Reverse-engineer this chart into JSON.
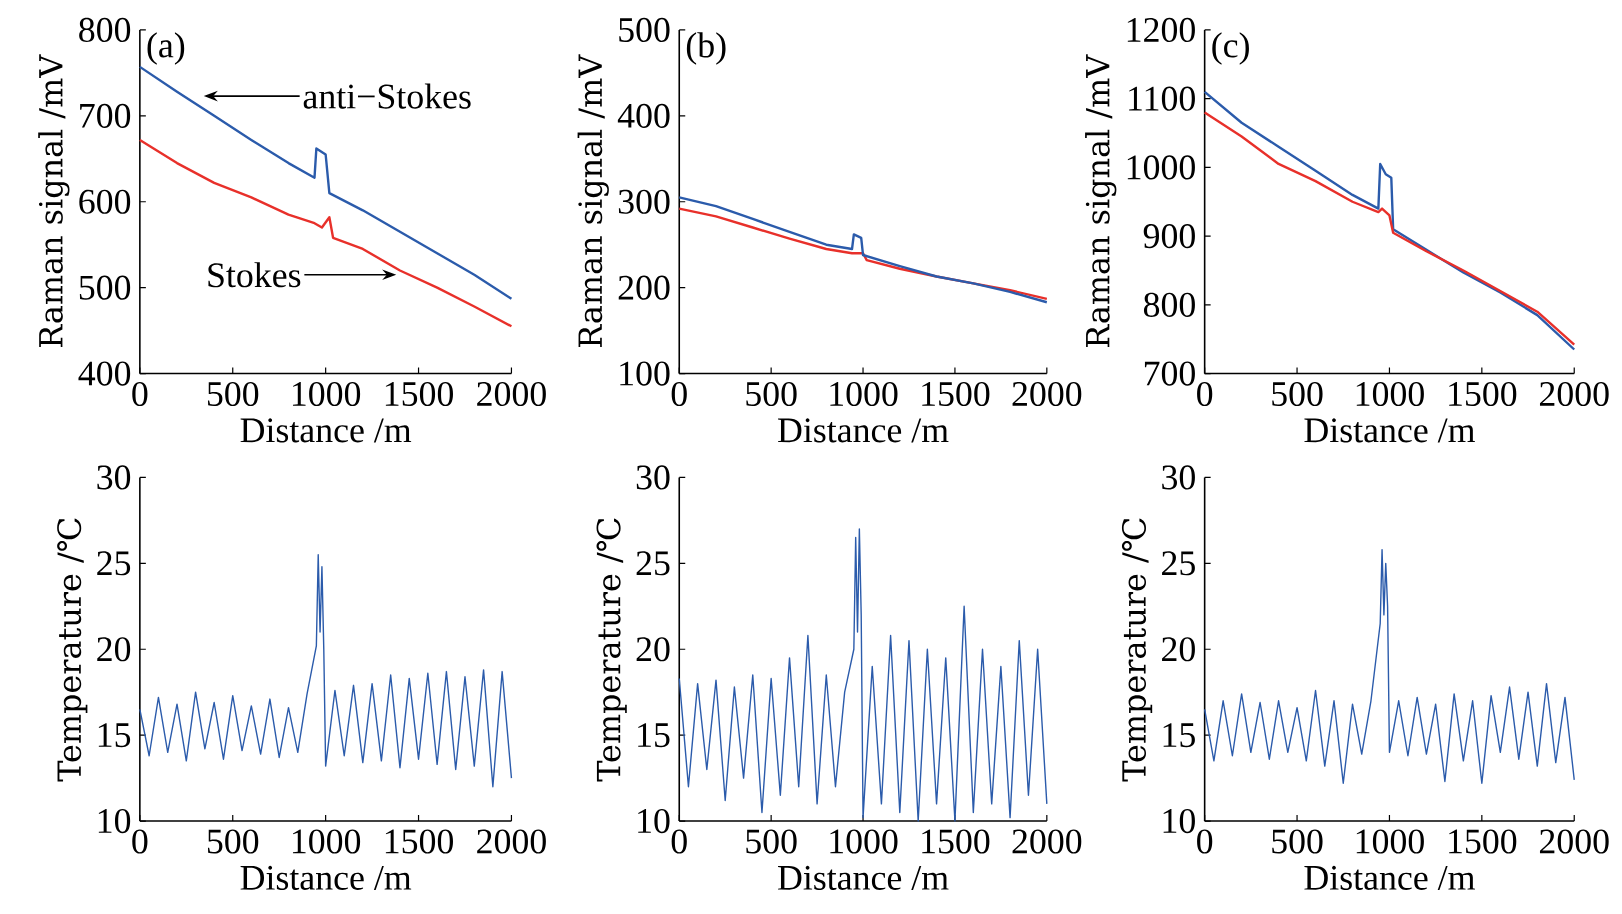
{
  "chart_data": [
    {
      "type": "line",
      "xlabel": "Distance /m",
      "ylabel": "Raman signal /mV",
      "xlim": [
        0,
        2000
      ],
      "ylim": [
        400,
        800
      ],
      "xticks": [
        0,
        500,
        1000,
        1500,
        2000
      ],
      "yticks": [
        400,
        500,
        600,
        700,
        800
      ],
      "annotations": [
        "(a)",
        {
          "text": "anti−Stokes",
          "x": 344,
          "y": 723
        },
        {
          "text": "Stokes",
          "x": 1380,
          "y": 515
        }
      ],
      "series": [
        {
          "color": "#2b5bab",
          "x": [
            0,
            200,
            400,
            600,
            800,
            940,
            950,
            1000,
            1020,
            1200,
            1400,
            1600,
            1800,
            2000
          ],
          "values": [
            757,
            728,
            700,
            672,
            645,
            628,
            662,
            655,
            610,
            590,
            565,
            540,
            515,
            487
          ]
        },
        {
          "color": "#e8302a",
          "x": [
            0,
            200,
            400,
            600,
            800,
            940,
            980,
            1020,
            1040,
            1200,
            1400,
            1600,
            1800,
            2000
          ],
          "values": [
            672,
            645,
            622,
            605,
            585,
            575,
            570,
            582,
            558,
            545,
            520,
            500,
            478,
            455
          ]
        }
      ]
    },
    {
      "type": "line",
      "xlabel": "Distance /m",
      "ylabel": "Raman signal /mV",
      "xlim": [
        0,
        2000
      ],
      "ylim": [
        100,
        500
      ],
      "xticks": [
        0,
        500,
        1000,
        1500,
        2000
      ],
      "yticks": [
        100,
        200,
        300,
        400,
        500
      ],
      "annotations": [
        "(b)"
      ],
      "series": [
        {
          "color": "#e8302a",
          "x": [
            0,
            200,
            400,
            600,
            800,
            940,
            1000,
            1020,
            1200,
            1400,
            1600,
            1800,
            2000
          ],
          "values": [
            292,
            283,
            270,
            257,
            245,
            240,
            240,
            232,
            222,
            213,
            205,
            197,
            187
          ]
        },
        {
          "color": "#2b5bab",
          "x": [
            0,
            200,
            400,
            600,
            800,
            940,
            950,
            990,
            1000,
            1200,
            1400,
            1600,
            1800,
            2000
          ],
          "values": [
            305,
            295,
            280,
            265,
            250,
            245,
            262,
            258,
            238,
            225,
            213,
            205,
            195,
            183
          ]
        }
      ]
    },
    {
      "type": "line",
      "xlabel": "Distance /m",
      "ylabel": "Raman signal /mV",
      "xlim": [
        0,
        2000
      ],
      "ylim": [
        700,
        1200
      ],
      "xticks": [
        0,
        500,
        1000,
        1500,
        2000
      ],
      "yticks": [
        700,
        800,
        900,
        1000,
        1100,
        1200
      ],
      "annotations": [
        "(c)"
      ],
      "series": [
        {
          "color": "#2b5bab",
          "x": [
            0,
            200,
            400,
            600,
            800,
            940,
            950,
            980,
            1010,
            1020,
            1200,
            1400,
            1600,
            1800,
            2000
          ],
          "values": [
            1110,
            1065,
            1030,
            995,
            960,
            940,
            1005,
            990,
            985,
            910,
            880,
            847,
            818,
            785,
            735
          ]
        },
        {
          "color": "#e8302a",
          "x": [
            0,
            200,
            400,
            600,
            800,
            940,
            960,
            1000,
            1020,
            1200,
            1400,
            1600,
            1800,
            2000
          ],
          "values": [
            1080,
            1045,
            1005,
            980,
            950,
            935,
            940,
            930,
            905,
            878,
            850,
            820,
            790,
            742
          ]
        }
      ]
    },
    {
      "type": "line",
      "xlabel": "Distance /m",
      "ylabel": "Temperature /℃",
      "xlim": [
        0,
        2000
      ],
      "ylim": [
        10,
        30
      ],
      "xticks": [
        0,
        500,
        1000,
        1500,
        2000
      ],
      "yticks": [
        10,
        15,
        20,
        25,
        30
      ],
      "x": [
        0,
        50,
        100,
        150,
        200,
        250,
        300,
        350,
        400,
        450,
        500,
        550,
        600,
        650,
        700,
        750,
        800,
        850,
        900,
        950,
        960,
        970,
        980,
        990,
        1000,
        1050,
        1100,
        1150,
        1200,
        1250,
        1300,
        1350,
        1400,
        1450,
        1500,
        1550,
        1600,
        1650,
        1700,
        1750,
        1800,
        1850,
        1900,
        1950,
        2000
      ],
      "series": [
        {
          "color": "#2b5bab",
          "values": [
            16.5,
            13.8,
            17.2,
            14.0,
            16.8,
            13.5,
            17.5,
            14.2,
            16.9,
            13.6,
            17.3,
            14.1,
            16.7,
            13.9,
            17.1,
            13.7,
            16.6,
            14.0,
            17.4,
            20.2,
            25.5,
            21.0,
            24.8,
            20.0,
            13.2,
            17.6,
            13.8,
            17.9,
            13.4,
            18.0,
            13.5,
            18.5,
            13.1,
            18.3,
            13.6,
            18.6,
            13.3,
            18.7,
            13.0,
            18.4,
            13.2,
            18.8,
            12.0,
            18.7,
            12.5
          ]
        }
      ]
    },
    {
      "type": "line",
      "xlabel": "Distance /m",
      "ylabel": "Temperature /℃",
      "xlim": [
        0,
        2000
      ],
      "ylim": [
        10,
        30
      ],
      "xticks": [
        0,
        500,
        1000,
        1500,
        2000
      ],
      "yticks": [
        10,
        15,
        20,
        25,
        30
      ],
      "x": [
        0,
        50,
        100,
        150,
        200,
        250,
        300,
        350,
        400,
        450,
        500,
        550,
        600,
        650,
        700,
        750,
        800,
        850,
        900,
        950,
        960,
        970,
        980,
        990,
        1000,
        1050,
        1100,
        1150,
        1200,
        1250,
        1300,
        1350,
        1400,
        1450,
        1500,
        1550,
        1600,
        1650,
        1700,
        1750,
        1800,
        1850,
        1900,
        1950,
        2000
      ],
      "series": [
        {
          "color": "#2b5bab",
          "values": [
            18.3,
            12.0,
            18.0,
            13.0,
            18.2,
            11.2,
            17.8,
            12.5,
            18.5,
            10.5,
            18.3,
            11.5,
            19.5,
            12.0,
            20.8,
            11.0,
            18.5,
            12.0,
            17.5,
            20.0,
            26.5,
            21.0,
            27.0,
            22.0,
            10.2,
            19.0,
            11.0,
            20.8,
            10.5,
            20.5,
            10.0,
            20.0,
            11.0,
            19.5,
            10.0,
            22.5,
            10.5,
            20.0,
            11.0,
            19.0,
            10.2,
            20.5,
            11.5,
            20.0,
            11.0
          ]
        }
      ]
    },
    {
      "type": "line",
      "xlabel": "Distance /m",
      "ylabel": "Temperature /℃",
      "xlim": [
        0,
        2000
      ],
      "ylim": [
        10,
        30
      ],
      "xticks": [
        0,
        500,
        1000,
        1500,
        2000
      ],
      "yticks": [
        10,
        15,
        20,
        25,
        30
      ],
      "x": [
        0,
        50,
        100,
        150,
        200,
        250,
        300,
        350,
        400,
        450,
        500,
        550,
        600,
        650,
        700,
        750,
        800,
        850,
        900,
        950,
        960,
        970,
        980,
        990,
        1000,
        1050,
        1100,
        1150,
        1200,
        1250,
        1300,
        1350,
        1400,
        1450,
        1500,
        1550,
        1600,
        1650,
        1700,
        1750,
        1800,
        1850,
        1900,
        1950,
        2000
      ],
      "series": [
        {
          "color": "#2b5bab",
          "values": [
            16.5,
            13.5,
            17.0,
            13.8,
            17.4,
            14.0,
            16.9,
            13.6,
            17.0,
            14.0,
            16.6,
            13.5,
            17.6,
            13.2,
            17.0,
            12.2,
            16.8,
            13.9,
            17.0,
            21.5,
            25.8,
            22.0,
            25.0,
            22.5,
            14.0,
            17.0,
            13.8,
            17.2,
            13.9,
            16.8,
            12.3,
            17.4,
            13.5,
            17.0,
            12.2,
            17.3,
            14.0,
            17.8,
            13.6,
            17.5,
            13.2,
            18.0,
            13.4,
            17.2,
            12.4
          ]
        }
      ]
    }
  ]
}
